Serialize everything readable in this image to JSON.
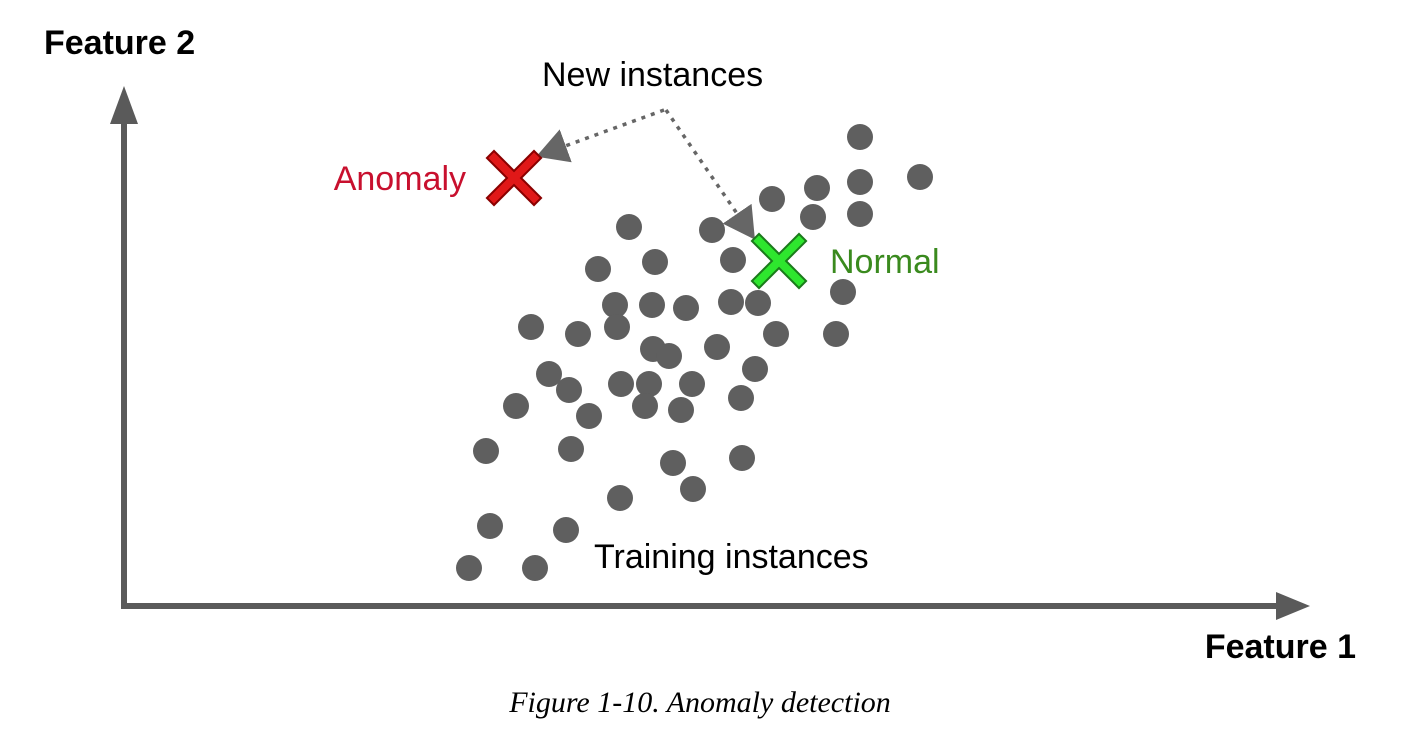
{
  "figure": {
    "xlabel": "Feature 1",
    "ylabel": "Feature 2",
    "caption": "Figure 1-10. Anomaly detection"
  },
  "annotations": {
    "new_instances": "New instances",
    "anomaly": "Anomaly",
    "normal": "Normal",
    "training_instances": "Training instances"
  },
  "colors": {
    "axis": "#5a5a5a",
    "points": "#5f5f5f",
    "anomaly_marker": "#e01818",
    "anomaly_text": "#c8102e",
    "normal_marker": "#2ee62e",
    "normal_text": "#3a8a1e",
    "arrow": "#666666"
  },
  "icons": {
    "anomaly_marker": "x-mark-icon",
    "normal_marker": "x-mark-icon"
  },
  "chart_data": {
    "type": "scatter",
    "xlabel": "Feature 1",
    "ylabel": "Feature 2",
    "grid": false,
    "series": [
      {
        "name": "Training instances",
        "points": [
          [
            860,
            137
          ],
          [
            920,
            177
          ],
          [
            860,
            182
          ],
          [
            817,
            188
          ],
          [
            772,
            199
          ],
          [
            860,
            214
          ],
          [
            813,
            217
          ],
          [
            629,
            227
          ],
          [
            712,
            230
          ],
          [
            655,
            262
          ],
          [
            733,
            260
          ],
          [
            598,
            269
          ],
          [
            843,
            292
          ],
          [
            615,
            305
          ],
          [
            652,
            305
          ],
          [
            686,
            308
          ],
          [
            731,
            302
          ],
          [
            758,
            303
          ],
          [
            531,
            327
          ],
          [
            578,
            334
          ],
          [
            617,
            327
          ],
          [
            836,
            334
          ],
          [
            776,
            334
          ],
          [
            653,
            349
          ],
          [
            669,
            356
          ],
          [
            717,
            347
          ],
          [
            549,
            374
          ],
          [
            569,
            390
          ],
          [
            621,
            384
          ],
          [
            649,
            384
          ],
          [
            692,
            384
          ],
          [
            755,
            369
          ],
          [
            516,
            406
          ],
          [
            589,
            416
          ],
          [
            645,
            406
          ],
          [
            681,
            410
          ],
          [
            741,
            398
          ],
          [
            486,
            451
          ],
          [
            571,
            449
          ],
          [
            673,
            463
          ],
          [
            742,
            458
          ],
          [
            620,
            498
          ],
          [
            693,
            489
          ],
          [
            490,
            526
          ],
          [
            566,
            530
          ],
          [
            469,
            568
          ],
          [
            535,
            568
          ]
        ]
      },
      {
        "name": "Anomaly",
        "points": [
          [
            514,
            178
          ]
        ]
      },
      {
        "name": "Normal",
        "points": [
          [
            779,
            261
          ]
        ]
      }
    ]
  }
}
